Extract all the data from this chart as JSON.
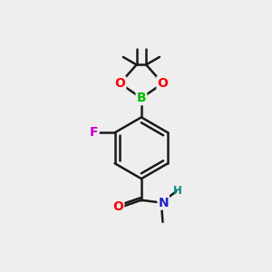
{
  "bg_color": "#eeeeee",
  "bond_color": "#1a1a1a",
  "bond_width": 1.8,
  "atom_colors": {
    "B": "#00bb00",
    "O": "#ff0000",
    "F": "#cc00cc",
    "N": "#2222cc",
    "H_N": "#008888",
    "C": "#1a1a1a"
  },
  "figsize": [
    3.0,
    3.0
  ],
  "dpi": 100
}
